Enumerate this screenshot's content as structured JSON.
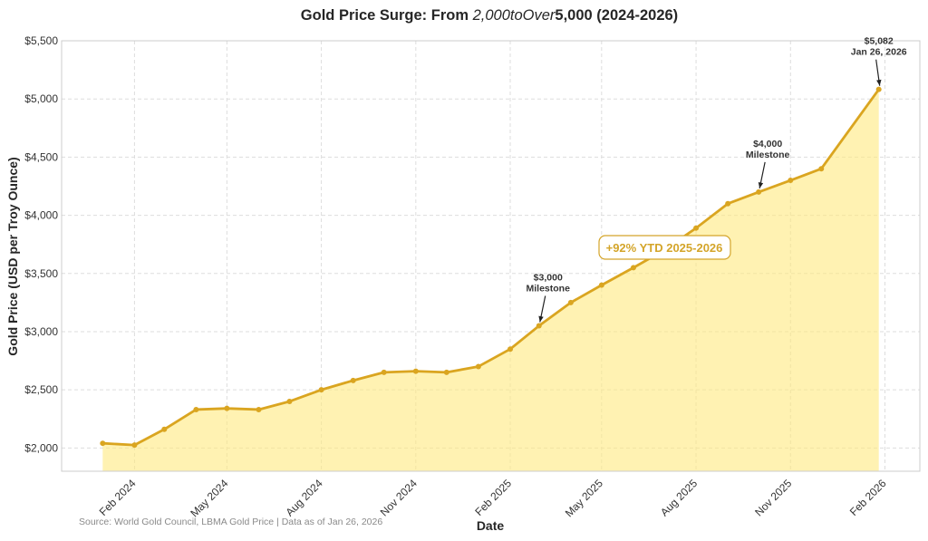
{
  "chart_data": {
    "type": "area",
    "title_parts": [
      "Gold Price Surge: From ",
      "2,000toOver",
      "5,000 (2024-2026)"
    ],
    "xlabel": "Date",
    "ylabel": "Gold Price (USD per Troy Ounce)",
    "ylim": [
      1800,
      5500
    ],
    "xlim": [
      "2023-11-22",
      "2026-03-07"
    ],
    "grid": true,
    "y_ticks": [
      2000,
      2500,
      3000,
      3500,
      4000,
      4500,
      5000,
      5500
    ],
    "y_tick_labels": [
      "$2,000",
      "$2,500",
      "$3,000",
      "$3,500",
      "$4,000",
      "$4,500",
      "$5,000",
      "$5,500"
    ],
    "x_ticks": [
      "2024-02-01",
      "2024-05-01",
      "2024-08-01",
      "2024-11-01",
      "2025-02-01",
      "2025-05-01",
      "2025-08-01",
      "2025-11-01",
      "2026-02-01"
    ],
    "x_tick_labels": [
      "Feb 2024",
      "May 2024",
      "Aug 2024",
      "Nov 2024",
      "Feb 2025",
      "May 2025",
      "Aug 2025",
      "Nov 2025",
      "Feb 2026"
    ],
    "x": [
      "2024-01-01",
      "2024-02-01",
      "2024-03-01",
      "2024-04-01",
      "2024-05-01",
      "2024-06-01",
      "2024-07-01",
      "2024-08-01",
      "2024-09-01",
      "2024-10-01",
      "2024-11-01",
      "2024-12-01",
      "2025-01-01",
      "2025-02-01",
      "2025-03-01",
      "2025-04-01",
      "2025-05-01",
      "2025-06-01",
      "2025-07-01",
      "2025-08-01",
      "2025-09-01",
      "2025-10-01",
      "2025-11-01",
      "2025-12-01",
      "2026-01-26"
    ],
    "values": [
      2040,
      2025,
      2160,
      2330,
      2340,
      2330,
      2400,
      2500,
      2580,
      2650,
      2660,
      2650,
      2700,
      2850,
      3050,
      3250,
      3400,
      3550,
      3700,
      3890,
      4100,
      4200,
      4300,
      4400,
      5082
    ],
    "line_color": "#DAA520",
    "fill_color": "#FFE97F",
    "annotations": [
      {
        "lines": [
          "$3,000",
          "Milestone"
        ],
        "x": "2025-03-01",
        "y": 3050
      },
      {
        "lines": [
          "$4,000",
          "Milestone"
        ],
        "x": "2025-10-01",
        "y": 4200
      },
      {
        "lines": [
          "$5,082",
          "Jan 26, 2026"
        ],
        "x": "2026-01-26",
        "y": 5082
      }
    ],
    "callout": "+92% YTD 2025-2026",
    "source": "Source: World Gold Council, LBMA Gold Price | Data as of Jan 26, 2026"
  }
}
